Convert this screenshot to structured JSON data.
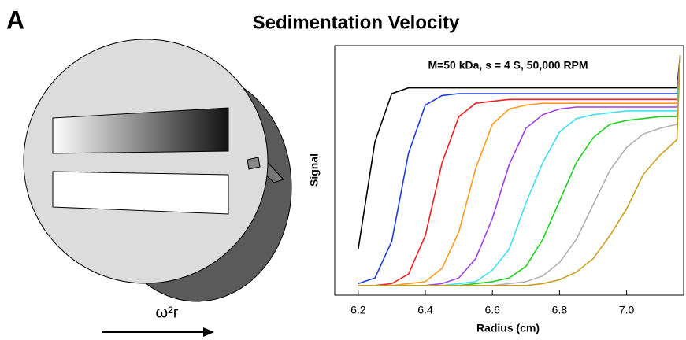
{
  "panel_label": "A",
  "title": "Sedimentation Velocity",
  "diagram": {
    "label": "ω²r"
  },
  "chart_data": {
    "type": "line",
    "annotation": "M=50 kDa, s = 4 S, 50,000 RPM",
    "x_label": "Radius (cm)",
    "y_label": "Signal",
    "x": [
      6.2,
      6.25,
      6.3,
      6.35,
      6.4,
      6.45,
      6.5,
      6.55,
      6.6,
      6.65,
      6.7,
      6.75,
      6.8,
      6.85,
      6.9,
      6.95,
      7.0,
      7.05,
      7.1,
      7.15,
      7.16
    ],
    "xlim": [
      6.13,
      7.17
    ],
    "xticks": [
      6.2,
      6.4,
      6.6,
      6.8,
      {
        "value": 7.0,
        "label": "7.0"
      }
    ],
    "ylim": [
      -0.05,
      1.25
    ],
    "series": [
      {
        "color": "#000000",
        "values": [
          0.19,
          0.75,
          1.0,
          1.03,
          1.03,
          1.03,
          1.03,
          1.03,
          1.03,
          1.03,
          1.03,
          1.03,
          1.03,
          1.03,
          1.03,
          1.03,
          1.03,
          1.03,
          1.03,
          1.03,
          1.2
        ]
      },
      {
        "color": "#1f3fd8",
        "values": [
          0.01,
          0.04,
          0.23,
          0.69,
          0.94,
          0.99,
          1.0,
          1.0,
          1.0,
          1.0,
          1.0,
          1.0,
          1.0,
          1.0,
          1.0,
          1.0,
          1.0,
          1.0,
          1.0,
          1.0,
          1.2
        ]
      },
      {
        "color": "#f02020",
        "values": [
          0,
          0,
          0.01,
          0.06,
          0.26,
          0.64,
          0.88,
          0.95,
          0.96,
          0.97,
          0.97,
          0.97,
          0.97,
          0.97,
          0.97,
          0.97,
          0.97,
          0.97,
          0.97,
          0.97,
          1.2
        ]
      },
      {
        "color": "#ff9a20",
        "values": [
          0,
          0,
          0,
          0.01,
          0.02,
          0.09,
          0.28,
          0.61,
          0.84,
          0.92,
          0.94,
          0.95,
          0.95,
          0.95,
          0.95,
          0.95,
          0.95,
          0.95,
          0.95,
          0.95,
          1.2
        ]
      },
      {
        "color": "#a040e0",
        "values": [
          0,
          0,
          0,
          0,
          0,
          0.01,
          0.04,
          0.14,
          0.35,
          0.63,
          0.82,
          0.89,
          0.92,
          0.93,
          0.93,
          0.93,
          0.93,
          0.93,
          0.93,
          0.93,
          1.2
        ]
      },
      {
        "color": "#40e0f0",
        "values": [
          0,
          0,
          0,
          0,
          0,
          0,
          0.01,
          0.02,
          0.08,
          0.19,
          0.43,
          0.64,
          0.8,
          0.87,
          0.89,
          0.9,
          0.91,
          0.91,
          0.91,
          0.91,
          1.2
        ]
      },
      {
        "color": "#20d020",
        "values": [
          0,
          0,
          0,
          0,
          0,
          0,
          0,
          0.01,
          0.02,
          0.04,
          0.1,
          0.24,
          0.44,
          0.64,
          0.77,
          0.84,
          0.86,
          0.87,
          0.88,
          0.88,
          1.2
        ]
      },
      {
        "color": "#b0b0b0",
        "values": [
          0,
          0,
          0,
          0,
          0,
          0,
          0,
          0,
          0,
          0.01,
          0.02,
          0.05,
          0.12,
          0.24,
          0.42,
          0.6,
          0.72,
          0.79,
          0.82,
          0.84,
          1.2
        ]
      },
      {
        "color": "#c8a020",
        "values": [
          0,
          0,
          0,
          0,
          0,
          0,
          0,
          0,
          0,
          0,
          0,
          0.01,
          0.03,
          0.07,
          0.14,
          0.26,
          0.4,
          0.58,
          0.68,
          0.76,
          1.2
        ]
      }
    ]
  }
}
